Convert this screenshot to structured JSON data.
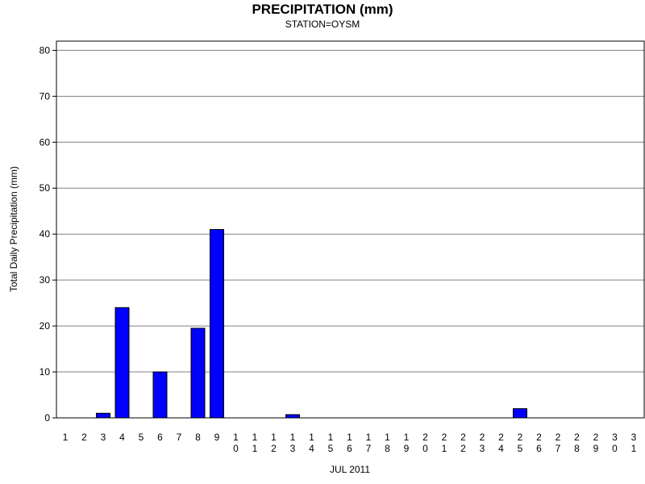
{
  "chart_data": {
    "type": "bar",
    "title": "PRECIPITATION (mm)",
    "subtitle": "STATION=OYSM",
    "xlabel": "JUL 2011",
    "ylabel": "Total Daily Precipitation (mm)",
    "ylim": [
      0,
      82
    ],
    "yticks": [
      0,
      10,
      20,
      30,
      40,
      50,
      60,
      70,
      80
    ],
    "grid": true,
    "bar_color": "#0000ff",
    "categories": [
      "1",
      "2",
      "3",
      "4",
      "5",
      "6",
      "7",
      "8",
      "9",
      "10",
      "11",
      "12",
      "13",
      "14",
      "15",
      "16",
      "17",
      "18",
      "19",
      "20",
      "21",
      "22",
      "23",
      "24",
      "25",
      "26",
      "27",
      "28",
      "29",
      "30",
      "31"
    ],
    "values": [
      0,
      0,
      1,
      24,
      0,
      10,
      0,
      19.5,
      41,
      0,
      0,
      0,
      0.7,
      0,
      0,
      0,
      0,
      0,
      0,
      0,
      0,
      0,
      0,
      0,
      2,
      0,
      0,
      0,
      0,
      0,
      0
    ]
  }
}
